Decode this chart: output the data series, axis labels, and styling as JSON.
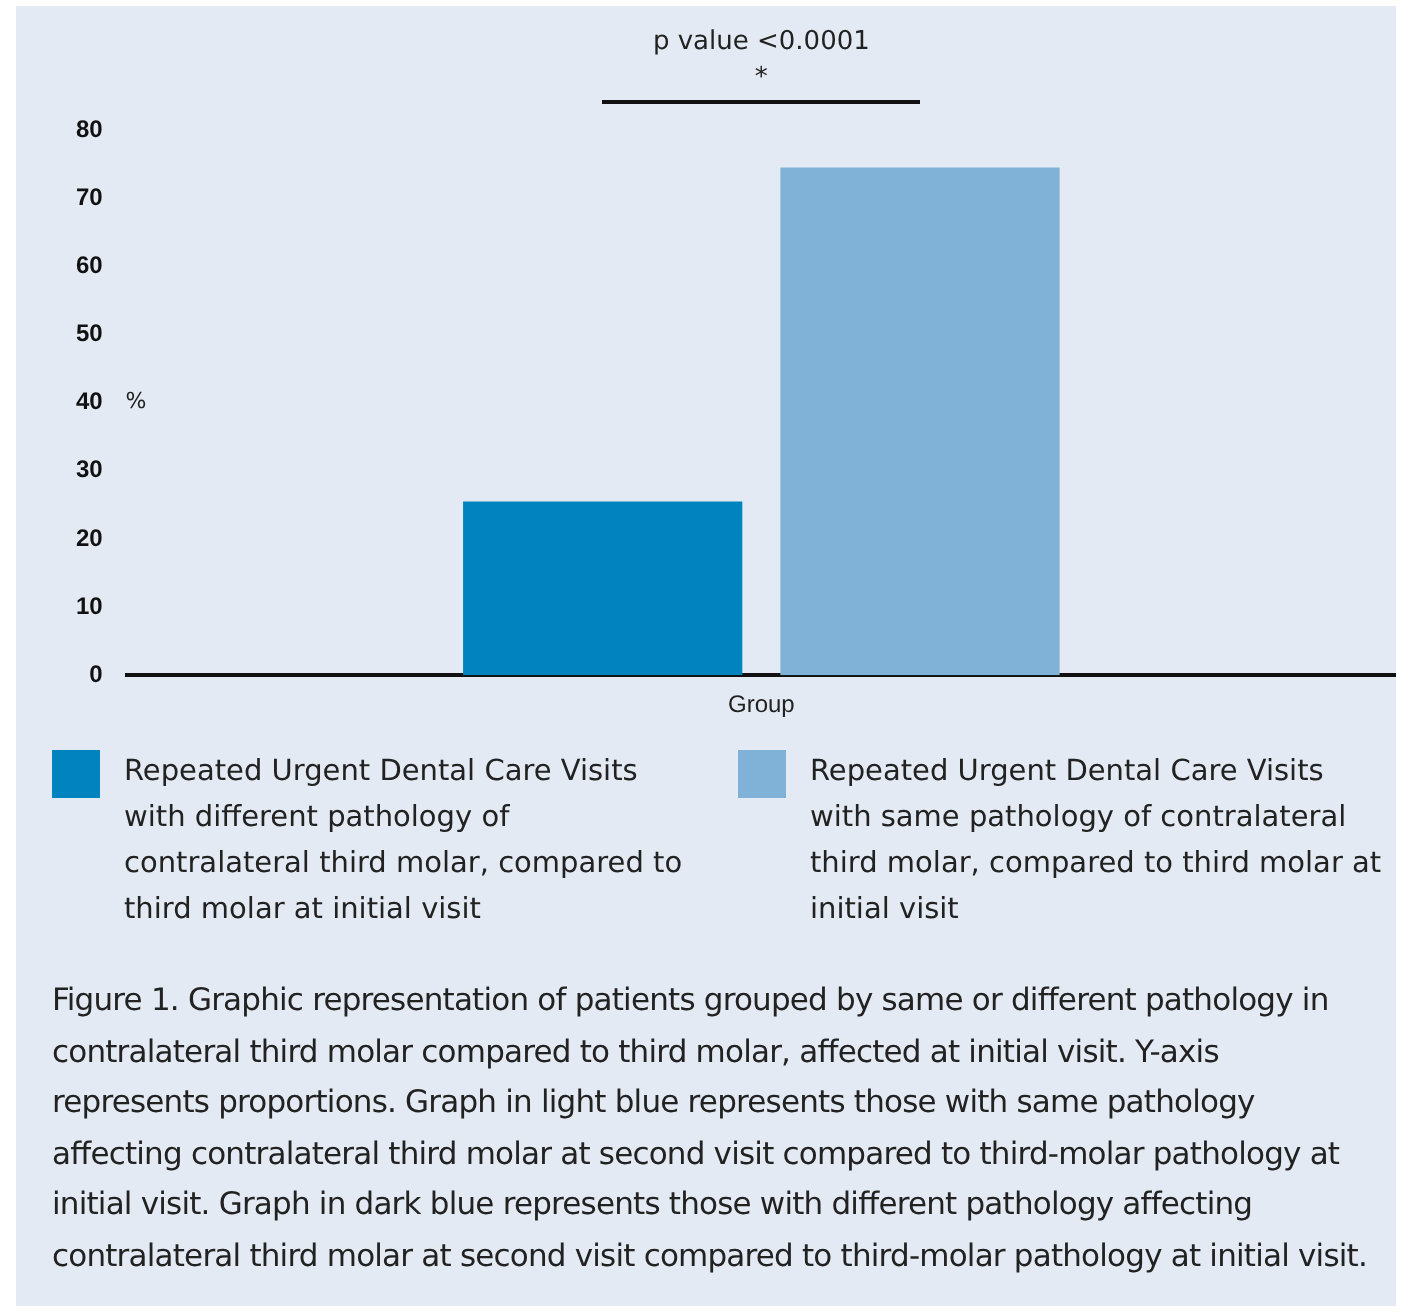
{
  "chart_data": {
    "type": "bar",
    "categories": [
      "Group"
    ],
    "ylabel": "%",
    "series": [
      {
        "name": "Repeated Urgent Dental Care Visits with different pathology of contralateral third molar, compared to third molar at initial visit",
        "color": "#0083be",
        "values": [
          25.5
        ]
      },
      {
        "name": "Repeated Urgent Dental Care Visits with same pathology of contralateral third molar, compared to third molar at initial visit",
        "color": "#7fb2d6",
        "values": [
          74.5
        ]
      }
    ],
    "ylim": [
      0,
      80
    ],
    "yticks": [
      0,
      10,
      20,
      30,
      40,
      50,
      60,
      70,
      80
    ],
    "grid": false,
    "legend": "bottom",
    "annotations": [
      "p value <0.0001",
      "*",
      "Figure 1. Graphic representation of patients grouped by same or different pathology in contralateral third molar compared to third molar, affected at initial visit. Y-axis represents proportions. Graph in light blue represents those with same pathology affecting contralateral third molar at second visit compared to third-molar pathology at initial visit. Graph in dark blue represents those with different pathology affecting contralateral third molar at second visit compared to third-molar pathology at initial visit."
    ]
  }
}
